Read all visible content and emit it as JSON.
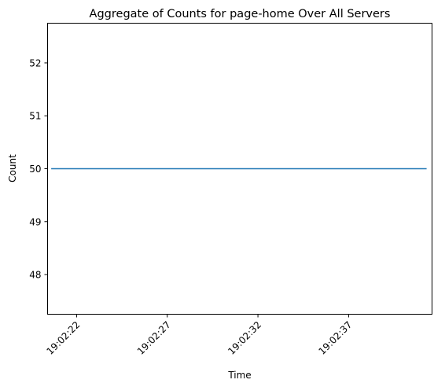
{
  "chart_data": {
    "type": "line",
    "title": "Aggregate of Counts for page-home Over All Servers",
    "xlabel": "Time",
    "ylabel": "Count",
    "xtick_labels": [
      "19:02:22",
      "19:02:27",
      "19:02:32",
      "19:02:37"
    ],
    "ytick_values": [
      48,
      49,
      50,
      51,
      52
    ],
    "ylim": [
      47.25,
      52.75
    ],
    "xlim": [
      "19:02:20.4",
      "19:02:41.6"
    ],
    "x": [
      "19:02:20.6",
      "19:02:41.3"
    ],
    "series": [
      {
        "values": [
          50,
          50
        ],
        "color": "#1f77b4"
      }
    ],
    "grid": false,
    "legend": "none"
  }
}
